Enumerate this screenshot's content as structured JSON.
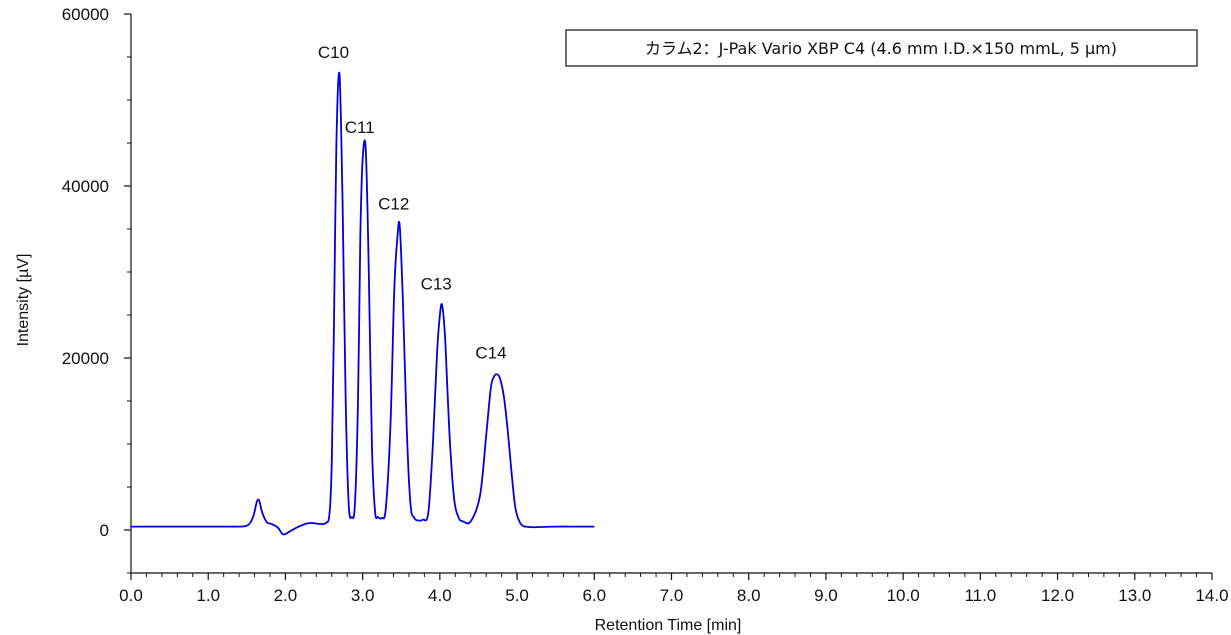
{
  "chart_data": {
    "type": "line",
    "title": "",
    "xlabel": "Retention Time [min]",
    "ylabel": "Intensity [µV]",
    "xlim": [
      0.0,
      14.0
    ],
    "ylim": [
      -5000,
      60000
    ],
    "x_ticks": [
      "0.0",
      "1.0",
      "2.0",
      "3.0",
      "4.0",
      "5.0",
      "6.0",
      "7.0",
      "8.0",
      "9.0",
      "10.0",
      "11.0",
      "12.0",
      "13.0",
      "14.0"
    ],
    "y_ticks": [
      "0",
      "20000",
      "40000",
      "60000"
    ],
    "grid": false,
    "legend_box": "カラム2：J-Pak Vario XBP C4 (4.6 mm I.D.×150 mmL, 5 µm)",
    "legend_placement": "top-right",
    "line_color": "#0000dd",
    "peaks": [
      {
        "label": "C10",
        "x": 2.7,
        "y": 53000
      },
      {
        "label": "C11",
        "x": 3.04,
        "y": 44300
      },
      {
        "label": "C12",
        "x": 3.48,
        "y": 35400
      },
      {
        "label": "C13",
        "x": 4.03,
        "y": 26100
      },
      {
        "label": "C14",
        "x": 4.74,
        "y": 18100
      }
    ],
    "series": [
      {
        "x": [
          0.0,
          0.5,
          1.0,
          1.3,
          1.5,
          1.58,
          1.63,
          1.66,
          1.7,
          1.76,
          1.82,
          1.9,
          1.97,
          2.05,
          2.15,
          2.3,
          2.45,
          2.52,
          2.57,
          2.6,
          2.63,
          2.66,
          2.7,
          2.74,
          2.78,
          2.82,
          2.86,
          2.9,
          2.94,
          2.97,
          3.0,
          3.04,
          3.08,
          3.12,
          3.16,
          3.2,
          3.25,
          3.3,
          3.36,
          3.41,
          3.45,
          3.48,
          3.52,
          3.57,
          3.62,
          3.67,
          3.72,
          3.78,
          3.85,
          3.91,
          3.96,
          4.0,
          4.03,
          4.07,
          4.12,
          4.18,
          4.24,
          4.3,
          4.4,
          4.52,
          4.6,
          4.66,
          4.7,
          4.74,
          4.78,
          4.83,
          4.88,
          4.93,
          4.98,
          5.05,
          5.15,
          5.3,
          5.5,
          5.7,
          6.0
        ],
        "y": [
          400,
          400,
          400,
          400,
          500,
          1500,
          3300,
          3400,
          2000,
          900,
          700,
          300,
          -500,
          -200,
          300,
          800,
          700,
          800,
          1800,
          8000,
          25000,
          45000,
          53000,
          38000,
          15000,
          3000,
          1500,
          3000,
          15000,
          34000,
          43000,
          44300,
          30000,
          10000,
          2200,
          1500,
          1400,
          2500,
          12000,
          28000,
          34000,
          35400,
          27000,
          12000,
          3000,
          1400,
          1100,
          1200,
          2000,
          10000,
          20000,
          25000,
          26100,
          22000,
          12000,
          4000,
          1500,
          1000,
          1000,
          4000,
          11000,
          16500,
          17800,
          18100,
          17600,
          15500,
          11500,
          6500,
          2500,
          700,
          350,
          350,
          400,
          400,
          400
        ]
      }
    ]
  }
}
